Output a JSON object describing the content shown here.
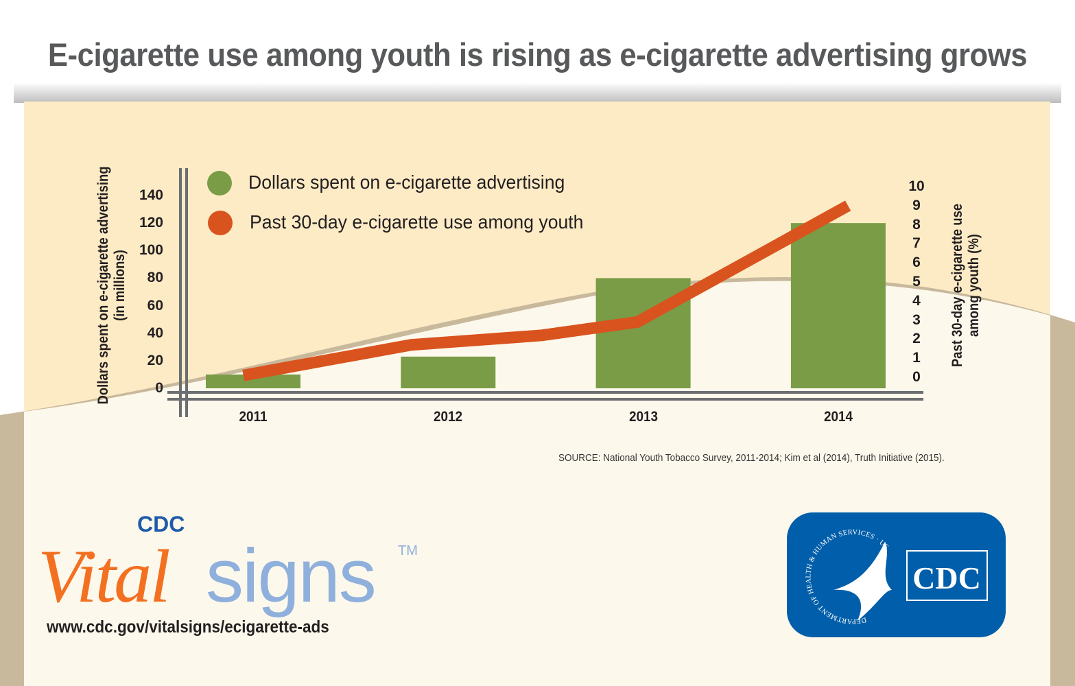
{
  "title": "E-cigarette use among youth is rising as e-cigarette advertising grows",
  "source": "SOURCE: National Youth Tobacco Survey, 2011-2014; Kim et al (2014), Truth Initiative (2015).",
  "colors": {
    "bars": "#7a9c47",
    "line": "#d9531e",
    "background_top": "#fdebc6",
    "background_bottom": "#fdf8ec",
    "logo_blue": "#005eaa"
  },
  "chart_data": {
    "type": "bar+line",
    "title": "E-cigarette use among youth is rising as e-cigarette advertising grows",
    "categories": [
      "2011",
      "2012",
      "2013",
      "2014"
    ],
    "y_left": {
      "label_line1": "Dollars spent on e-cigarette advertising",
      "label_line2": "(in millions)",
      "ylim": [
        0,
        140
      ],
      "ticks": [
        "0",
        "20",
        "40",
        "60",
        "80",
        "100",
        "120",
        "140"
      ]
    },
    "y_right": {
      "label_line1": "Past 30-day e-cigarette use",
      "label_line2": "among youth (%)",
      "ylim": [
        0,
        10
      ],
      "ticks": [
        "0",
        "1",
        "2",
        "3",
        "4",
        "5",
        "6",
        "7",
        "8",
        "9",
        "10"
      ]
    },
    "legend_placement": "top-left",
    "grid": false,
    "series": [
      {
        "name": "Dollars spent on e-cigarette advertising",
        "type": "bar",
        "axis": "left",
        "color": "#7a9c47",
        "values": [
          10,
          23,
          80,
          120
        ]
      },
      {
        "name": "Past 30-day e-cigarette use among youth",
        "type": "line",
        "axis": "right",
        "color": "#d9531e",
        "x": [
          2010.95,
          2011.81,
          2012.48,
          2012.97,
          2014.05
        ],
        "values": [
          0.1,
          1.7,
          2.2,
          2.9,
          9.0
        ]
      }
    ]
  },
  "branding": {
    "vital": "Vital",
    "signs": "signs",
    "cdc": "CDC",
    "tm": "TM",
    "url": "www.cdc.gov/vitalsigns/ecigarette-ads",
    "hhs_seal_text": "DEPARTMENT OF HEALTH & HUMAN SERVICES · USA",
    "logo_text": "CDC"
  }
}
